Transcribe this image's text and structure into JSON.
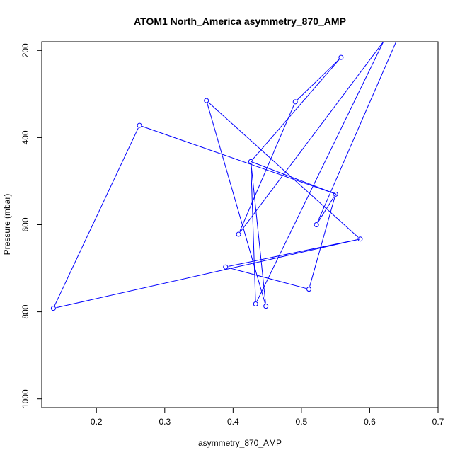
{
  "chart_data": {
    "type": "line",
    "title": "ATOM1 North_America asymmetry_870_AMP",
    "xlabel": "asymmetry_870_AMP",
    "ylabel": "Pressure (mbar)",
    "xlim": [
      0.12,
      0.7
    ],
    "ylim": [
      1020,
      180
    ],
    "y_inverted": true,
    "xticks": [
      0.2,
      0.3,
      0.4,
      0.5,
      0.6,
      0.7
    ],
    "xtick_labels": [
      "0.2",
      "0.3",
      "0.4",
      "0.5",
      "0.6",
      "0.7"
    ],
    "yticks": [
      200,
      400,
      600,
      800,
      1000
    ],
    "ytick_labels": [
      "200",
      "400",
      "600",
      "800",
      "1000"
    ],
    "grid": false,
    "legend": "none",
    "line_color": "#0000ff",
    "series": [
      {
        "x": [
          0.64,
          0.522,
          0.55,
          0.511,
          0.389,
          0.586,
          0.361,
          0.448,
          0.426,
          0.558,
          0.491,
          0.408,
          0.62,
          0.433,
          0.426,
          0.551,
          0.263,
          0.137,
          0.586
        ],
        "y": [
          175,
          600,
          530,
          748,
          697,
          633,
          315,
          787,
          455,
          216,
          318,
          622,
          180,
          782,
          455,
          530,
          372,
          792,
          633
        ],
        "markers": [
          true,
          true,
          true,
          true,
          true,
          true,
          true,
          true,
          true,
          true,
          true,
          true,
          false,
          true,
          false,
          false,
          true,
          true,
          false
        ]
      }
    ]
  }
}
